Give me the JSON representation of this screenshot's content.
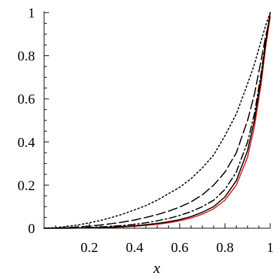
{
  "chart_data": {
    "type": "line",
    "xlabel": "x",
    "ylabel": "",
    "xlim": [
      0,
      1
    ],
    "ylim": [
      0,
      1
    ],
    "x_ticks": [
      0.2,
      0.4,
      0.6,
      0.8,
      1
    ],
    "x_tick_labels": [
      "0.2",
      "0.4",
      "0.6",
      "0.8",
      "1"
    ],
    "y_ticks": [
      0,
      0.2,
      0.4,
      0.6,
      0.8,
      1
    ],
    "y_tick_labels": [
      "0",
      "0.2",
      "0.4",
      "0.6",
      "0.8",
      "1"
    ],
    "grid": false,
    "x": [
      0,
      0.05,
      0.1,
      0.15,
      0.2,
      0.25,
      0.3,
      0.35,
      0.4,
      0.45,
      0.5,
      0.55,
      0.6,
      0.65,
      0.7,
      0.75,
      0.8,
      0.85,
      0.9,
      0.93,
      0.96,
      0.98,
      1.0
    ],
    "series": [
      {
        "color": "#000000",
        "dash": "dotted",
        "values": [
          0,
          0.003,
          0.008,
          0.015,
          0.025,
          0.036,
          0.05,
          0.066,
          0.085,
          0.105,
          0.13,
          0.16,
          0.19,
          0.23,
          0.28,
          0.34,
          0.43,
          0.53,
          0.67,
          0.76,
          0.87,
          0.94,
          1.0
        ]
      },
      {
        "color": "#000000",
        "dash": "longdash",
        "values": [
          0,
          0.001,
          0.003,
          0.006,
          0.01,
          0.015,
          0.021,
          0.029,
          0.038,
          0.05,
          0.063,
          0.079,
          0.098,
          0.122,
          0.155,
          0.2,
          0.26,
          0.35,
          0.5,
          0.62,
          0.78,
          0.89,
          0.98
        ]
      },
      {
        "color": "#000000",
        "dash": "dashdot",
        "values": [
          0,
          0.0,
          0.001,
          0.002,
          0.004,
          0.006,
          0.009,
          0.013,
          0.018,
          0.025,
          0.034,
          0.045,
          0.059,
          0.077,
          0.1,
          0.13,
          0.18,
          0.26,
          0.4,
          0.53,
          0.72,
          0.87,
          1.0
        ]
      },
      {
        "color": "#e0201a",
        "dash": "solid",
        "values": [
          0,
          0.0,
          0.0,
          0.001,
          0.002,
          0.003,
          0.004,
          0.006,
          0.009,
          0.013,
          0.018,
          0.025,
          0.034,
          0.047,
          0.065,
          0.09,
          0.13,
          0.2,
          0.33,
          0.47,
          0.67,
          0.84,
          0.98
        ]
      },
      {
        "color": "#000000",
        "dash": "solid",
        "values": [
          0,
          0.0,
          0.0,
          0.001,
          0.002,
          0.003,
          0.005,
          0.008,
          0.011,
          0.016,
          0.022,
          0.03,
          0.04,
          0.054,
          0.074,
          0.1,
          0.145,
          0.22,
          0.36,
          0.5,
          0.7,
          0.86,
          1.0
        ]
      }
    ]
  }
}
